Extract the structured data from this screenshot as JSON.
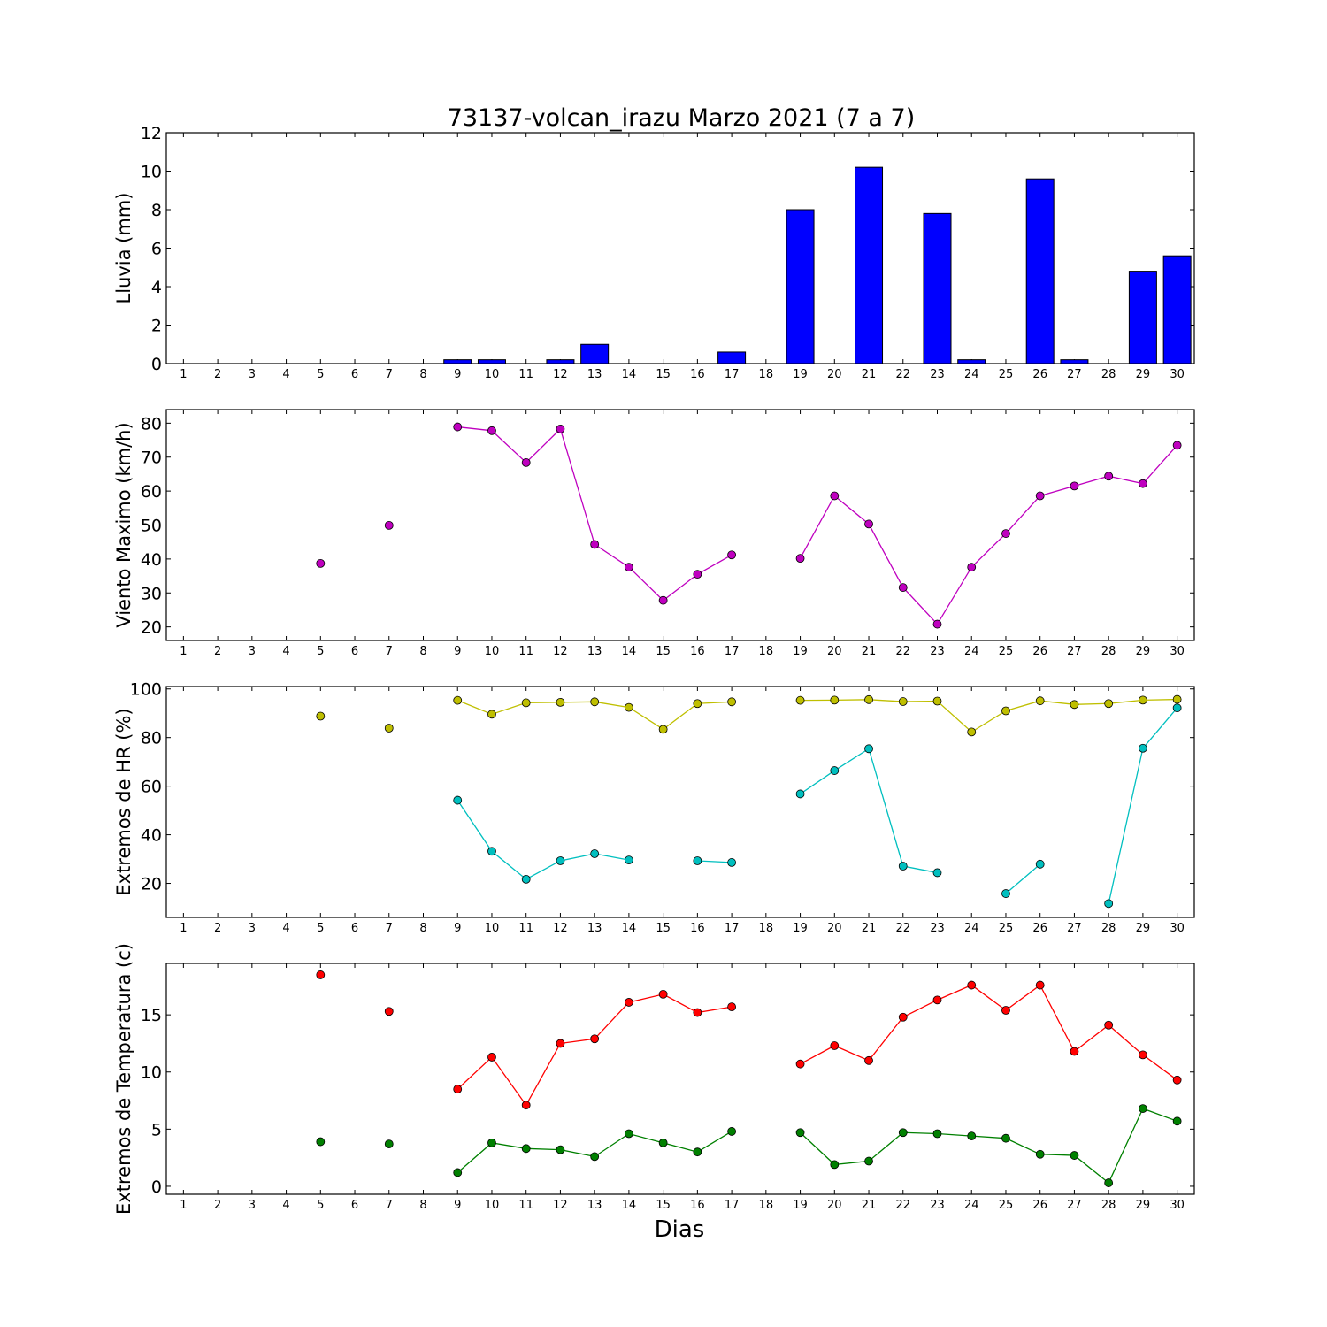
{
  "figure": {
    "title": "73137-volcan_irazu Marzo 2021  (7 a 7)",
    "xlabel": "Dias"
  },
  "chart_data": [
    {
      "type": "bar",
      "ylabel": "Lluvia (mm)",
      "xlim": [
        0.5,
        30.5
      ],
      "ylim": [
        0,
        12
      ],
      "yticks": [
        0,
        2,
        4,
        6,
        8,
        10,
        12
      ],
      "xticks": [
        1,
        2,
        3,
        4,
        5,
        6,
        7,
        8,
        9,
        10,
        11,
        12,
        13,
        14,
        15,
        16,
        17,
        18,
        19,
        20,
        21,
        22,
        23,
        24,
        25,
        26,
        27,
        28,
        29,
        30
      ],
      "series": [
        {
          "color": "#0000ff",
          "x": [
            5,
            7,
            9,
            10,
            11,
            12,
            13,
            14,
            15,
            16,
            17,
            19,
            20,
            21,
            22,
            23,
            24,
            25,
            26,
            27,
            28,
            29,
            30
          ],
          "values": [
            0,
            0,
            0.2,
            0.2,
            0,
            0.2,
            1.0,
            0,
            0,
            0,
            0.6,
            8.0,
            0,
            10.2,
            0,
            7.8,
            0.2,
            0,
            9.6,
            0.2,
            0,
            4.8,
            5.6
          ]
        }
      ]
    },
    {
      "type": "line",
      "ylabel": "Viento Maximo (km/h)",
      "xlim": [
        0.5,
        30.5
      ],
      "ylim": [
        16,
        84
      ],
      "yticks": [
        20,
        30,
        40,
        50,
        60,
        70,
        80
      ],
      "xticks": [
        1,
        2,
        3,
        4,
        5,
        6,
        7,
        8,
        9,
        10,
        11,
        12,
        13,
        14,
        15,
        16,
        17,
        18,
        19,
        20,
        21,
        22,
        23,
        24,
        25,
        26,
        27,
        28,
        29,
        30
      ],
      "series": [
        {
          "color": "#bf00bf",
          "x": [
            1,
            2,
            3,
            4,
            5,
            6,
            7,
            8,
            9,
            10,
            11,
            12,
            13,
            14,
            15,
            16,
            17,
            18,
            19,
            20,
            21,
            22,
            23,
            24,
            25,
            26,
            27,
            28,
            29,
            30
          ],
          "values": [
            null,
            null,
            null,
            null,
            38.7,
            null,
            49.9,
            null,
            78.9,
            77.8,
            68.4,
            78.3,
            44.3,
            37.6,
            27.8,
            35.5,
            41.2,
            null,
            40.2,
            58.6,
            50.3,
            31.6,
            20.8,
            37.6,
            47.5,
            58.6,
            61.5,
            64.4,
            62.2,
            73.5
          ]
        }
      ]
    },
    {
      "type": "line",
      "ylabel": "Extremos de HR (%)",
      "xlim": [
        0.5,
        30.5
      ],
      "ylim": [
        6,
        101
      ],
      "yticks": [
        20,
        40,
        60,
        80,
        100
      ],
      "xticks": [
        1,
        2,
        3,
        4,
        5,
        6,
        7,
        8,
        9,
        10,
        11,
        12,
        13,
        14,
        15,
        16,
        17,
        18,
        19,
        20,
        21,
        22,
        23,
        24,
        25,
        26,
        27,
        28,
        29,
        30
      ],
      "series": [
        {
          "color": "#bfbf00",
          "x": [
            1,
            2,
            3,
            4,
            5,
            6,
            7,
            8,
            9,
            10,
            11,
            12,
            13,
            14,
            15,
            16,
            17,
            18,
            19,
            20,
            21,
            22,
            23,
            24,
            25,
            26,
            27,
            28,
            29,
            30
          ],
          "values": [
            null,
            null,
            null,
            null,
            88.8,
            null,
            83.9,
            null,
            95.3,
            89.6,
            94.3,
            94.5,
            94.7,
            92.4,
            83.4,
            94.0,
            94.7,
            null,
            95.3,
            95.4,
            95.6,
            94.8,
            95.0,
            82.3,
            91.0,
            95.1,
            93.6,
            94.0,
            95.4,
            95.7
          ]
        },
        {
          "color": "#00bfbf",
          "x": [
            1,
            2,
            3,
            4,
            5,
            6,
            7,
            8,
            9,
            10,
            11,
            12,
            13,
            14,
            15,
            16,
            17,
            18,
            19,
            20,
            21,
            22,
            23,
            24,
            25,
            26,
            27,
            28,
            29,
            30
          ],
          "values": [
            null,
            null,
            null,
            null,
            null,
            null,
            null,
            null,
            54.2,
            33.2,
            21.7,
            29.3,
            32.2,
            29.6,
            null,
            29.3,
            28.6,
            null,
            56.8,
            66.4,
            75.4,
            27.1,
            24.4,
            null,
            15.8,
            27.9,
            null,
            11.7,
            75.6,
            92.2
          ]
        }
      ]
    },
    {
      "type": "line",
      "ylabel": "Extremos de Temperatura (c)",
      "xlim": [
        0.5,
        30.5
      ],
      "ylim": [
        -0.7,
        19.5
      ],
      "yticks": [
        0,
        5,
        10,
        15
      ],
      "xticks": [
        1,
        2,
        3,
        4,
        5,
        6,
        7,
        8,
        9,
        10,
        11,
        12,
        13,
        14,
        15,
        16,
        17,
        18,
        19,
        20,
        21,
        22,
        23,
        24,
        25,
        26,
        27,
        28,
        29,
        30
      ],
      "series": [
        {
          "color": "#ff0000",
          "x": [
            1,
            2,
            3,
            4,
            5,
            6,
            7,
            8,
            9,
            10,
            11,
            12,
            13,
            14,
            15,
            16,
            17,
            18,
            19,
            20,
            21,
            22,
            23,
            24,
            25,
            26,
            27,
            28,
            29,
            30
          ],
          "values": [
            null,
            null,
            null,
            null,
            18.5,
            null,
            15.3,
            null,
            8.5,
            11.3,
            7.1,
            12.5,
            12.9,
            16.1,
            16.8,
            15.2,
            15.7,
            null,
            10.7,
            12.3,
            11.0,
            14.8,
            16.3,
            17.6,
            15.4,
            17.6,
            11.8,
            14.1,
            11.5,
            9.3
          ]
        },
        {
          "color": "#008000",
          "x": [
            1,
            2,
            3,
            4,
            5,
            6,
            7,
            8,
            9,
            10,
            11,
            12,
            13,
            14,
            15,
            16,
            17,
            18,
            19,
            20,
            21,
            22,
            23,
            24,
            25,
            26,
            27,
            28,
            29,
            30
          ],
          "values": [
            null,
            null,
            null,
            null,
            3.9,
            null,
            3.7,
            null,
            1.2,
            3.8,
            3.3,
            3.2,
            2.6,
            4.6,
            3.8,
            3.0,
            4.8,
            null,
            4.7,
            1.9,
            2.2,
            4.7,
            4.6,
            4.4,
            4.2,
            2.8,
            2.7,
            0.3,
            6.8,
            5.7
          ]
        }
      ]
    }
  ]
}
